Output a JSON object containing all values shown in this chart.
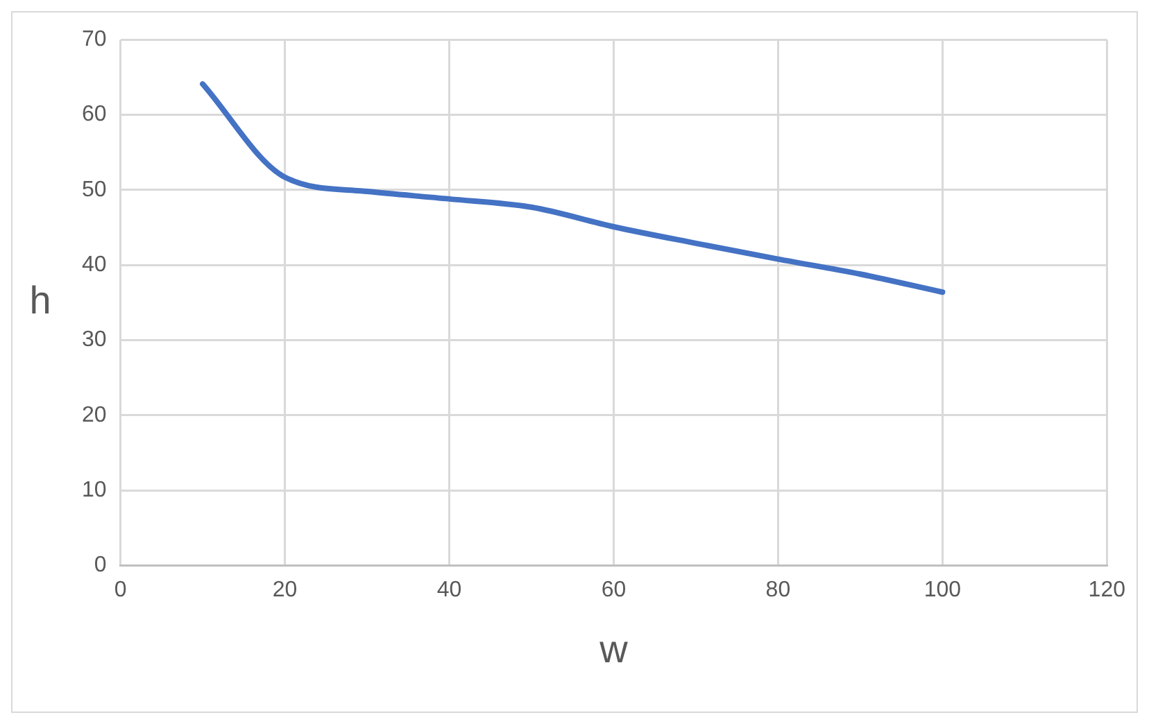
{
  "chart_data": {
    "type": "line",
    "xlabel": "w",
    "ylabel": "h",
    "x": [
      10,
      20,
      30,
      40,
      50,
      60,
      70,
      80,
      90,
      100
    ],
    "series": [
      {
        "color": "#4472c4",
        "values": [
          64.1,
          51.7,
          49.8,
          48.8,
          47.7,
          45.1,
          42.9,
          40.8,
          38.8,
          36.4
        ]
      }
    ],
    "xlim": [
      0,
      120
    ],
    "xticks": [
      0,
      20,
      40,
      60,
      80,
      100,
      120
    ],
    "ylim": [
      0,
      70
    ],
    "yticks": [
      0,
      10,
      20,
      30,
      40,
      50,
      60,
      70
    ],
    "grid": true,
    "legend": false,
    "marker": "none",
    "line_style": "solid"
  }
}
